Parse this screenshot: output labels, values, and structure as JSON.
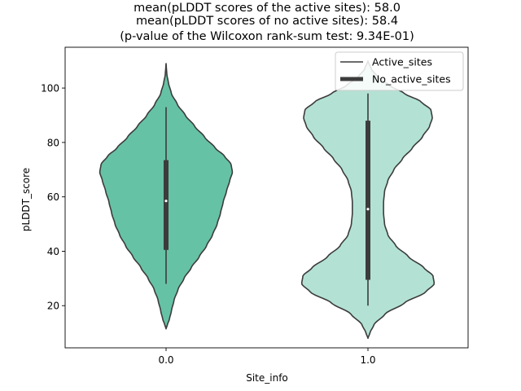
{
  "chart_data": {
    "type": "violin",
    "title_lines": [
      "mean(pLDDT scores of the active sites): 58.0",
      "mean(pLDDT scores of no active sites): 58.4",
      "(p-value of the Wilcoxon rank-sum test: 9.34E-01)"
    ],
    "xlabel": "Site_info",
    "ylabel": "pLDDT_score",
    "categories": [
      "0.0",
      "1.0"
    ],
    "yticks": [
      20,
      40,
      60,
      80,
      100
    ],
    "ylim": [
      4.5,
      115
    ],
    "legend": {
      "placement": "upper right",
      "entries": [
        "Active_sites",
        "No_active_sites"
      ]
    },
    "series": [
      {
        "category": "0.0",
        "color": "#66c2a5",
        "density_range": [
          11.5,
          109
        ],
        "density_profile": [
          [
            11.5,
            0.0
          ],
          [
            13,
            0.02
          ],
          [
            15,
            0.05
          ],
          [
            18,
            0.08
          ],
          [
            22,
            0.12
          ],
          [
            26,
            0.18
          ],
          [
            30,
            0.27
          ],
          [
            34,
            0.38
          ],
          [
            38,
            0.5
          ],
          [
            42,
            0.61
          ],
          [
            46,
            0.7
          ],
          [
            50,
            0.77
          ],
          [
            54,
            0.82
          ],
          [
            58,
            0.86
          ],
          [
            62,
            0.91
          ],
          [
            66,
            0.96
          ],
          [
            69,
            1.0
          ],
          [
            72,
            0.98
          ],
          [
            75,
            0.88
          ],
          [
            78,
            0.74
          ],
          [
            82,
            0.58
          ],
          [
            86,
            0.43
          ],
          [
            90,
            0.29
          ],
          [
            94,
            0.17
          ],
          [
            98,
            0.08
          ],
          [
            102,
            0.035
          ],
          [
            105,
            0.012
          ],
          [
            108,
            0.003
          ],
          [
            109,
            0.0
          ]
        ],
        "whisker": [
          28,
          93
        ],
        "q1": 40.5,
        "q3": 73.5,
        "median": 58.5
      },
      {
        "category": "1.0",
        "color": "#b3e2d4",
        "density_range": [
          8,
          110
        ],
        "density_profile": [
          [
            8,
            0.0
          ],
          [
            10,
            0.03
          ],
          [
            13,
            0.09
          ],
          [
            17,
            0.26
          ],
          [
            21,
            0.55
          ],
          [
            25,
            0.87
          ],
          [
            28,
            1.0
          ],
          [
            31,
            0.98
          ],
          [
            34,
            0.84
          ],
          [
            38,
            0.61
          ],
          [
            42,
            0.42
          ],
          [
            46,
            0.3
          ],
          [
            50,
            0.25
          ],
          [
            54,
            0.235
          ],
          [
            58,
            0.235
          ],
          [
            62,
            0.25
          ],
          [
            66,
            0.3
          ],
          [
            70,
            0.39
          ],
          [
            74,
            0.52
          ],
          [
            78,
            0.67
          ],
          [
            82,
            0.82
          ],
          [
            86,
            0.93
          ],
          [
            89,
            0.97
          ],
          [
            92,
            0.95
          ],
          [
            95,
            0.8
          ],
          [
            98,
            0.55
          ],
          [
            101,
            0.32
          ],
          [
            104,
            0.15
          ],
          [
            107,
            0.05
          ],
          [
            110,
            0.0
          ]
        ],
        "whisker": [
          20,
          98
        ],
        "q1": 29.5,
        "q3": 88,
        "median": 55.5
      }
    ],
    "grid": false
  },
  "legend_line_color": "#3c3c3c"
}
